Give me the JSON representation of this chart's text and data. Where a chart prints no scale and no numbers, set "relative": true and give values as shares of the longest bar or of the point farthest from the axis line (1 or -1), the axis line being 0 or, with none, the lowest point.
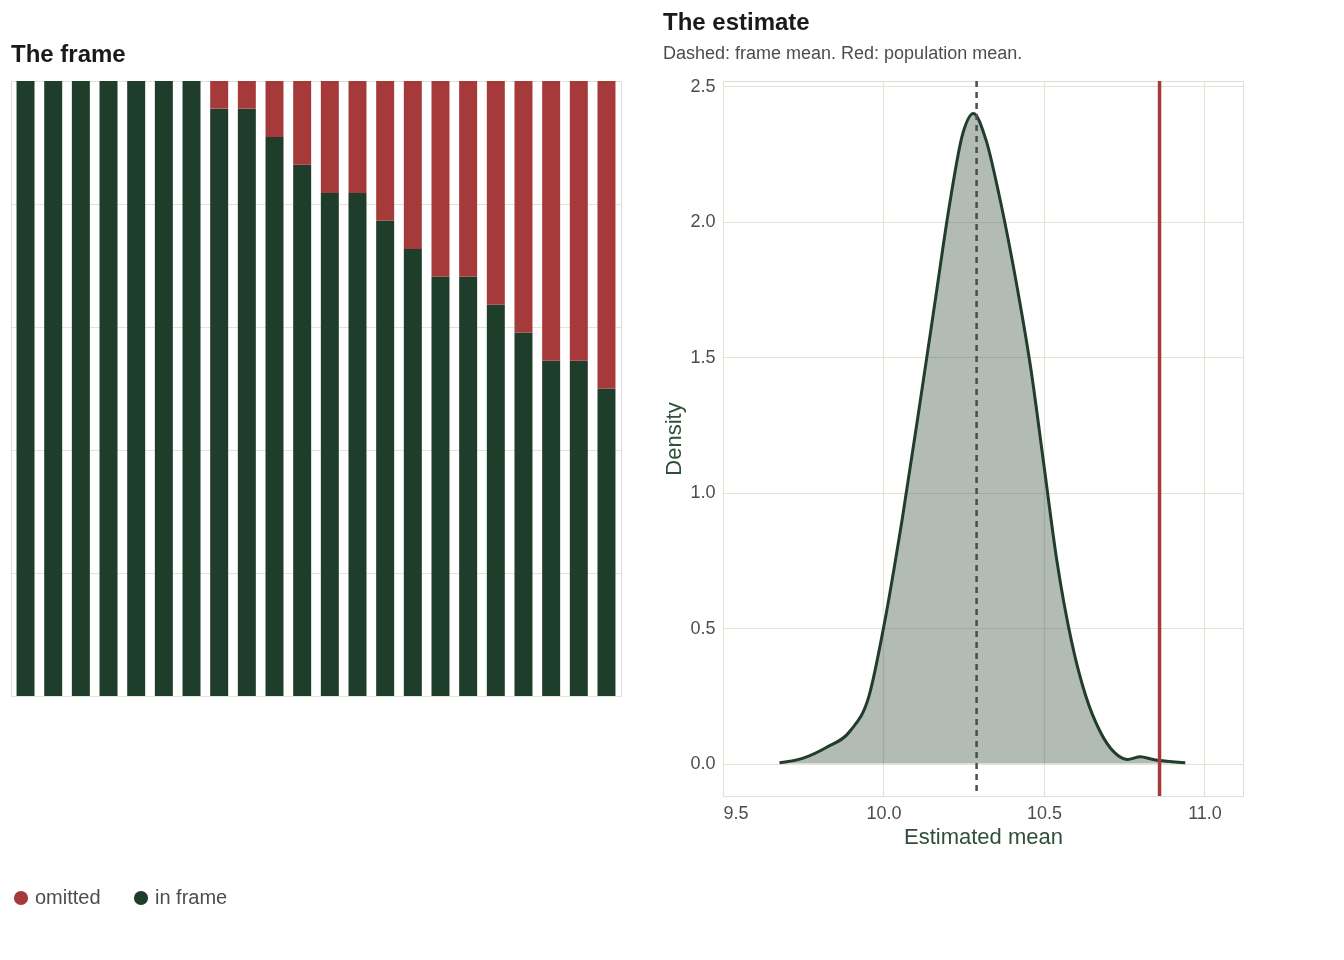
{
  "chart_data": [
    {
      "type": "bar",
      "title": "The frame",
      "legend": "bottom",
      "grid": "y",
      "relative": true,
      "stacked": true,
      "categories": [
        null,
        null,
        null,
        null,
        null,
        null,
        null,
        null,
        null,
        null,
        null,
        null,
        null,
        null,
        null,
        null,
        null,
        null,
        null,
        null,
        null,
        null
      ],
      "series": [
        {
          "name": "in frame",
          "color": "#1f3d2b",
          "values": [
            1,
            1,
            1,
            1,
            1,
            1,
            1,
            0.955,
            0.955,
            0.909,
            0.864,
            0.818,
            0.818,
            0.773,
            0.727,
            0.682,
            0.682,
            0.636,
            0.591,
            0.545,
            0.545,
            0.5
          ]
        },
        {
          "name": "omitted",
          "color": "#a63a3a",
          "values": [
            0,
            0,
            0,
            0,
            0,
            0,
            0,
            0.045,
            0.045,
            0.091,
            0.136,
            0.182,
            0.182,
            0.227,
            0.273,
            0.318,
            0.318,
            0.364,
            0.409,
            0.455,
            0.455,
            0.5
          ]
        }
      ]
    },
    {
      "type": "area",
      "title": "The estimate",
      "subtitle": "Dashed: frame mean. Red: population mean.",
      "xlabel": "Estimated mean",
      "ylabel": "Density",
      "grid": true,
      "xlim": [
        9.5,
        11.12
      ],
      "ylim": [
        -0.12,
        2.52
      ],
      "xticks": [
        9.5,
        {
          "value": 10,
          "label": "10.0"
        },
        10.5,
        {
          "value": 11,
          "label": "11.0"
        }
      ],
      "yticks": [
        {
          "value": 0,
          "label": "0.0"
        },
        0.5,
        {
          "value": 1,
          "label": "1.0"
        },
        1.5,
        {
          "value": 2,
          "label": "2.0"
        },
        2.5
      ],
      "series": [
        {
          "color": "#213d2b",
          "x": [
            9.676,
            9.75,
            9.823,
            9.896,
            9.955,
            10.0,
            10.058,
            10.116,
            10.16,
            10.204,
            10.248,
            10.28,
            10.32,
            10.36,
            10.41,
            10.46,
            10.5,
            10.54,
            10.586,
            10.63,
            10.674,
            10.72,
            10.76,
            10.8,
            10.84,
            10.87,
            10.94
          ],
          "values": [
            0.003,
            0.02,
            0.06,
            0.12,
            0.25,
            0.5,
            0.9,
            1.35,
            1.7,
            2.05,
            2.33,
            2.4,
            2.3,
            2.1,
            1.8,
            1.45,
            1.1,
            0.75,
            0.45,
            0.25,
            0.12,
            0.04,
            0.015,
            0.025,
            0.015,
            0.01,
            0.003
          ]
        }
      ],
      "ref_lines": [
        {
          "axis": "x",
          "value": 10.29,
          "color": "#4d4d4d",
          "line_style": "dashed"
        },
        {
          "axis": "x",
          "value": 10.86,
          "color": "#a63a3a",
          "line_style": "solid"
        }
      ]
    }
  ]
}
